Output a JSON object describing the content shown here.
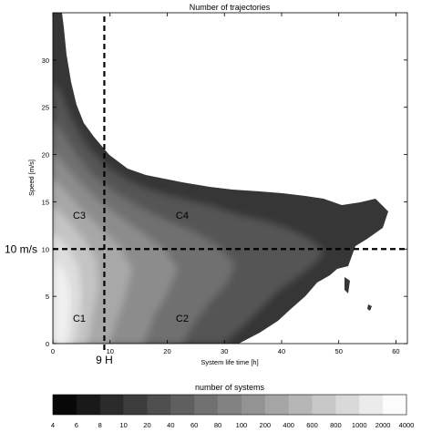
{
  "chart_data": {
    "type": "heatmap",
    "title": "Number of trajectories",
    "xlabel": "System life time [h]",
    "ylabel": "Speed [m/s]",
    "xlim": [
      0,
      62
    ],
    "ylim": [
      0,
      35
    ],
    "xticks": [
      "0",
      "10",
      "20",
      "30",
      "40",
      "50",
      "60"
    ],
    "yticks": [
      "0",
      "5",
      "10",
      "15",
      "20",
      "25",
      "30"
    ],
    "grid": false,
    "threshold_lines": {
      "vertical": {
        "x": 9,
        "label": "9 H"
      },
      "horizontal": {
        "y": 10,
        "label": "10 m/s"
      }
    },
    "annotations": [
      {
        "text": "C1",
        "x": 3.5,
        "y": 2.3
      },
      {
        "text": "C2",
        "x": 21.5,
        "y": 2.3
      },
      {
        "text": "C3",
        "x": 3.5,
        "y": 13.2
      },
      {
        "text": "C4",
        "x": 21.5,
        "y": 13.2
      }
    ],
    "colorbar": {
      "label": "number of systems",
      "levels": [
        "4",
        "6",
        "8",
        "10",
        "20",
        "40",
        "60",
        "80",
        "100",
        "200",
        "400",
        "600",
        "800",
        "1000",
        "2000",
        "4000"
      ]
    }
  }
}
